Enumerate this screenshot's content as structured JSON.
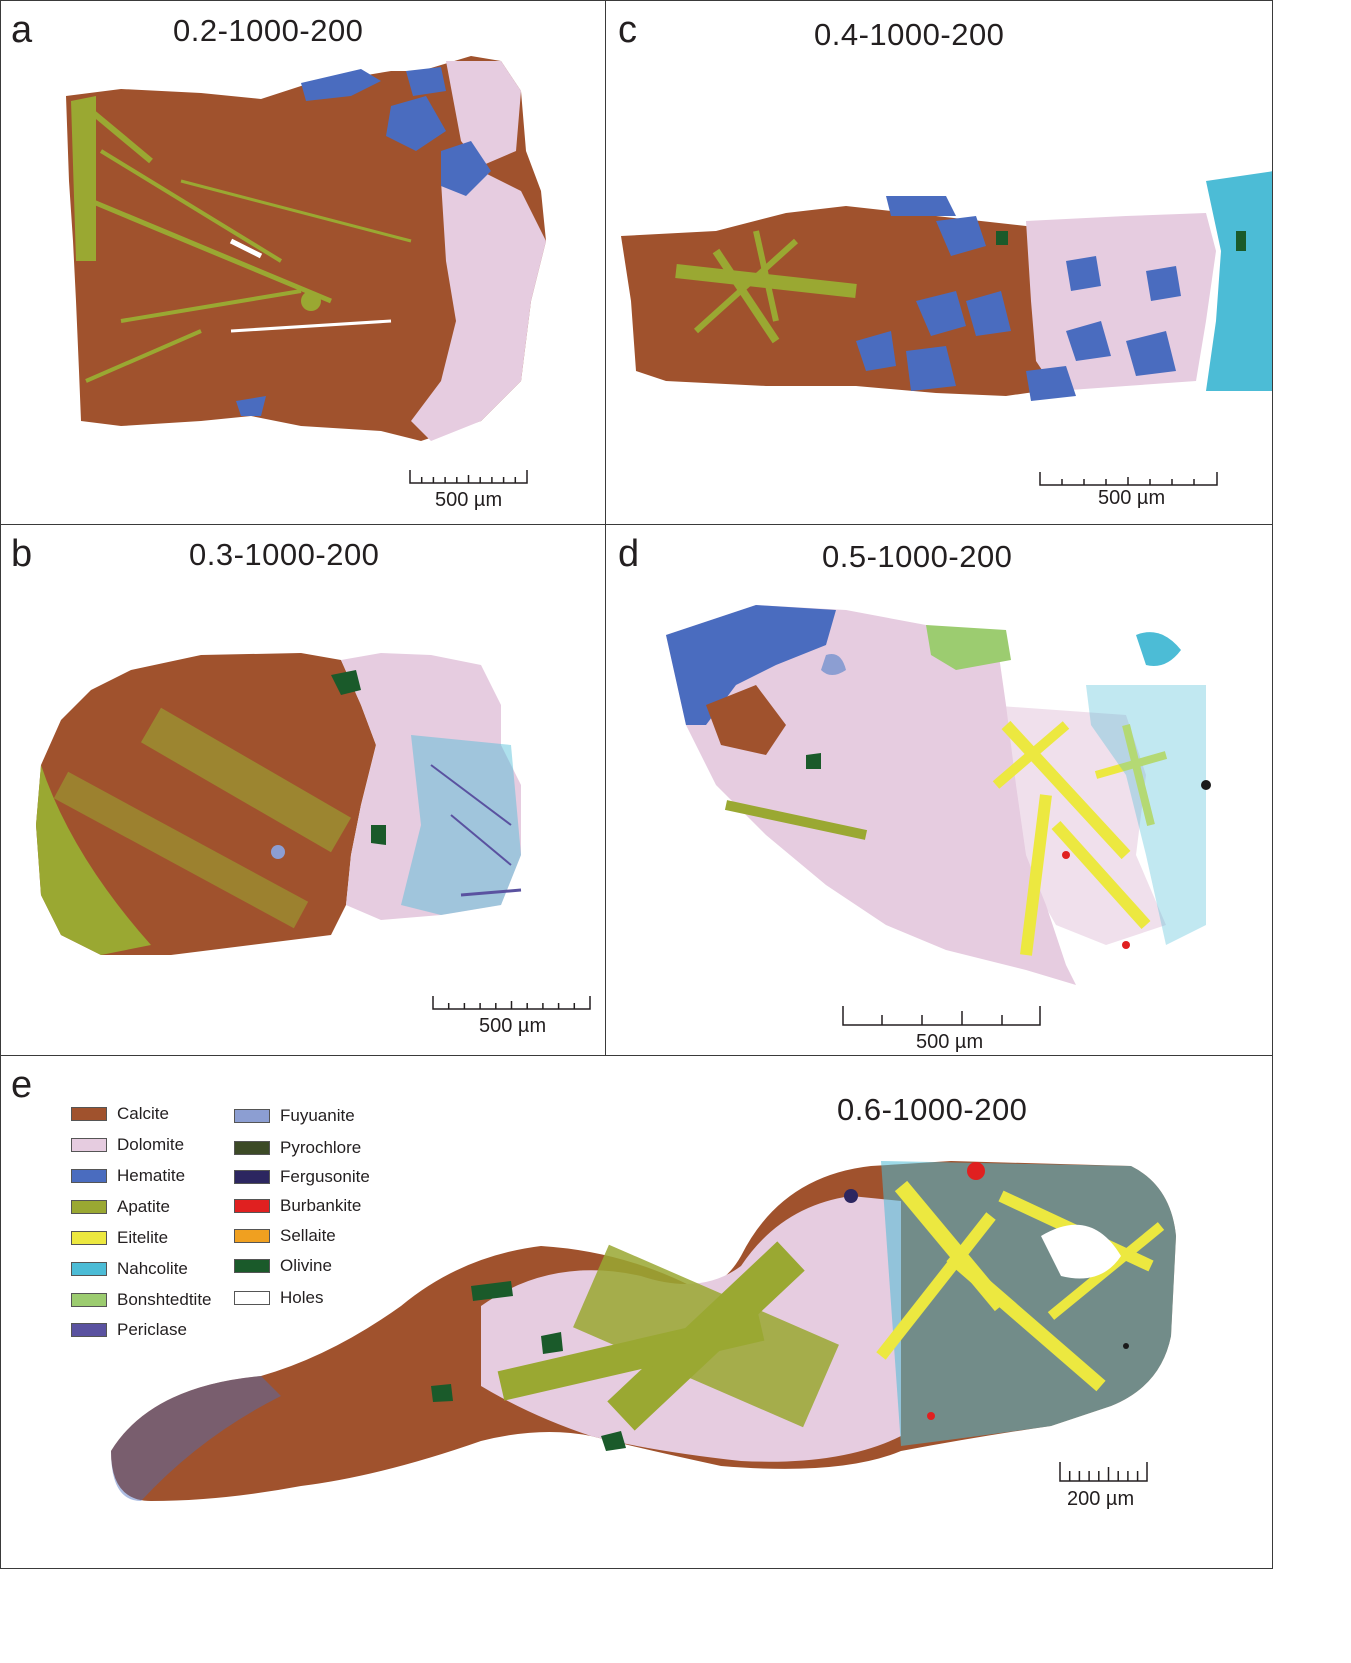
{
  "panels": {
    "a": {
      "letter": "a",
      "title": "0.2-1000-200",
      "scale": "500 µm"
    },
    "b": {
      "letter": "b",
      "title": "0.3-1000-200",
      "scale": "500 µm"
    },
    "c": {
      "letter": "c",
      "title": "0.4-1000-200",
      "scale": "500 µm"
    },
    "d": {
      "letter": "d",
      "title": "0.5-1000-200",
      "scale": "500 µm"
    },
    "e": {
      "letter": "e",
      "title": "0.6-1000-200",
      "scale": "200 µm"
    }
  },
  "legend": [
    {
      "label": "Calcite",
      "color": "#a0522d"
    },
    {
      "label": "Dolomite",
      "color": "#e6cce0"
    },
    {
      "label": "Hematite",
      "color": "#4a6cbf"
    },
    {
      "label": "Apatite",
      "color": "#9aa832"
    },
    {
      "label": "Eitelite",
      "color": "#ece840"
    },
    {
      "label": "Nahcolite",
      "color": "#4cbcd6"
    },
    {
      "label": "Bonshtedtite",
      "color": "#9ccc70"
    },
    {
      "label": "Periclase",
      "color": "#5a52a0"
    },
    {
      "label": "Fuyuanite",
      "color": "#8c9ed2"
    },
    {
      "label": "Pyrochlore",
      "color": "#3c4a26"
    },
    {
      "label": "Fergusonite",
      "color": "#2c2660"
    },
    {
      "label": "Burbankite",
      "color": "#e02020"
    },
    {
      "label": "Sellaite",
      "color": "#f0a020"
    },
    {
      "label": "Olivine",
      "color": "#1a5a2a"
    },
    {
      "label": "Holes",
      "color": "#ffffff"
    }
  ]
}
